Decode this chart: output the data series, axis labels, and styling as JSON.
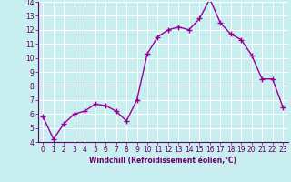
{
  "x": [
    0,
    1,
    2,
    3,
    4,
    5,
    6,
    7,
    8,
    9,
    10,
    11,
    12,
    13,
    14,
    15,
    16,
    17,
    18,
    19,
    20,
    21,
    22,
    23
  ],
  "y": [
    5.8,
    4.2,
    5.3,
    6.0,
    6.2,
    6.7,
    6.6,
    6.2,
    5.5,
    7.0,
    10.3,
    11.5,
    12.0,
    12.2,
    12.0,
    12.8,
    14.2,
    12.5,
    11.7,
    11.3,
    10.2,
    8.5,
    8.5,
    6.5
  ],
  "line_color": "#990099",
  "marker": "+",
  "marker_size": 4,
  "bg_color": "#c8eef0",
  "grid_color": "#ffffff",
  "xlabel": "Windchill (Refroidissement éolien,°C)",
  "xlabel_color": "#660066",
  "tick_color": "#660066",
  "ylim": [
    4,
    14
  ],
  "xlim": [
    -0.5,
    23.5
  ],
  "yticks": [
    4,
    5,
    6,
    7,
    8,
    9,
    10,
    11,
    12,
    13,
    14
  ],
  "xticks": [
    0,
    1,
    2,
    3,
    4,
    5,
    6,
    7,
    8,
    9,
    10,
    11,
    12,
    13,
    14,
    15,
    16,
    17,
    18,
    19,
    20,
    21,
    22,
    23
  ],
  "linewidth": 1.0,
  "tick_fontsize": 5.5,
  "xlabel_fontsize": 5.5
}
